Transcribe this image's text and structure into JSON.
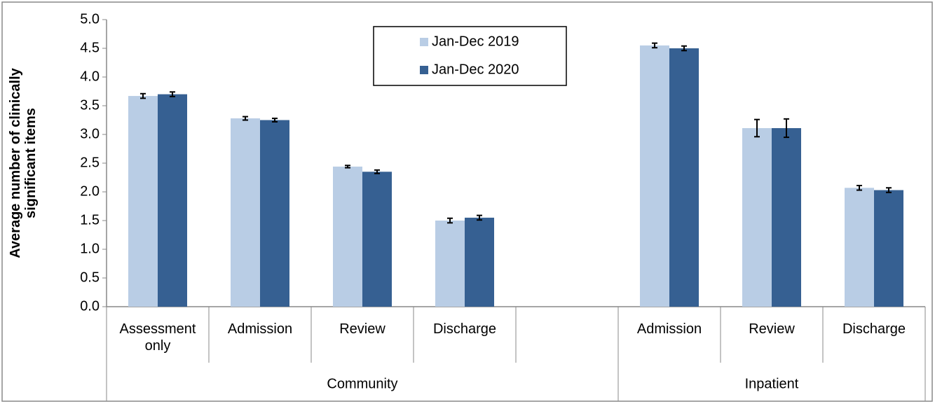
{
  "chart_data": {
    "type": "bar",
    "y_label": [
      "Average number of clinically",
      "significant items"
    ],
    "groups": [
      {
        "name": "Community",
        "categories": [
          "Assessment only",
          "Admission",
          "Review",
          "Discharge",
          null
        ]
      },
      {
        "name": "Inpatient",
        "categories": [
          "Admission",
          "Review",
          "Discharge"
        ]
      }
    ],
    "series": [
      {
        "name": "Jan-Dec 2019",
        "color": "#b9cde5",
        "values": [
          3.67,
          3.28,
          2.44,
          1.5,
          null,
          4.55,
          3.11,
          2.07
        ],
        "errors": [
          0.04,
          0.03,
          0.02,
          0.04,
          null,
          0.04,
          0.15,
          0.04
        ]
      },
      {
        "name": "Jan-Dec 2020",
        "color": "#366092",
        "values": [
          3.7,
          3.25,
          2.35,
          1.55,
          null,
          4.5,
          3.11,
          2.03
        ],
        "errors": [
          0.04,
          0.03,
          0.03,
          0.04,
          null,
          0.04,
          0.16,
          0.04
        ]
      }
    ],
    "ylim": [
      0,
      5
    ],
    "yticks": [
      {
        "value": 0,
        "label": "0.0"
      },
      0.5,
      {
        "value": 1,
        "label": "1.0"
      },
      1.5,
      {
        "value": 2,
        "label": "2.0"
      },
      2.5,
      {
        "value": 3,
        "label": "3.0"
      },
      3.5,
      {
        "value": 4,
        "label": "4.0"
      },
      4.5,
      {
        "value": 5,
        "label": "5.0"
      }
    ],
    "grid": false,
    "legend": "top"
  }
}
